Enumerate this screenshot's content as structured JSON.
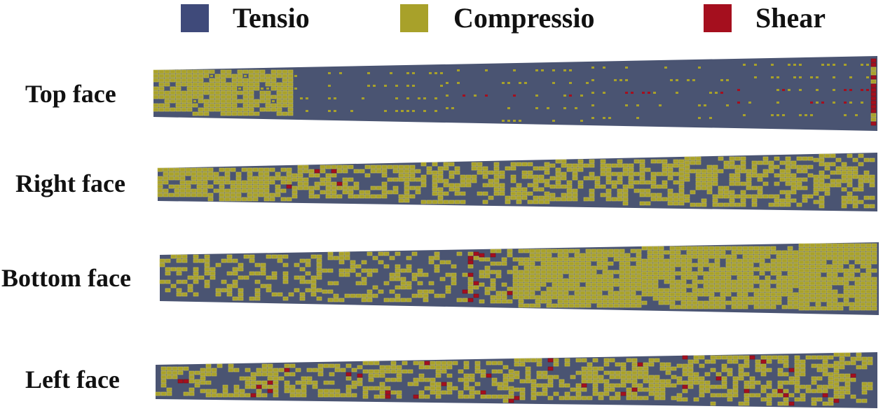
{
  "legend": [
    {
      "label": "Tensio",
      "color": "#3f4a7a"
    },
    {
      "label": "Compressio",
      "color": "#a8a12a"
    },
    {
      "label": "Shear",
      "color": "#a50f1e"
    }
  ],
  "faces": [
    {
      "label": "Top face"
    },
    {
      "label": "Right face"
    },
    {
      "label": "Bottom face"
    },
    {
      "label": "Left face"
    }
  ],
  "colors": {
    "tension": "#4a5472",
    "compression": "#a8a12a",
    "shear": "#a50f1e",
    "grid": "#c9c25a"
  }
}
